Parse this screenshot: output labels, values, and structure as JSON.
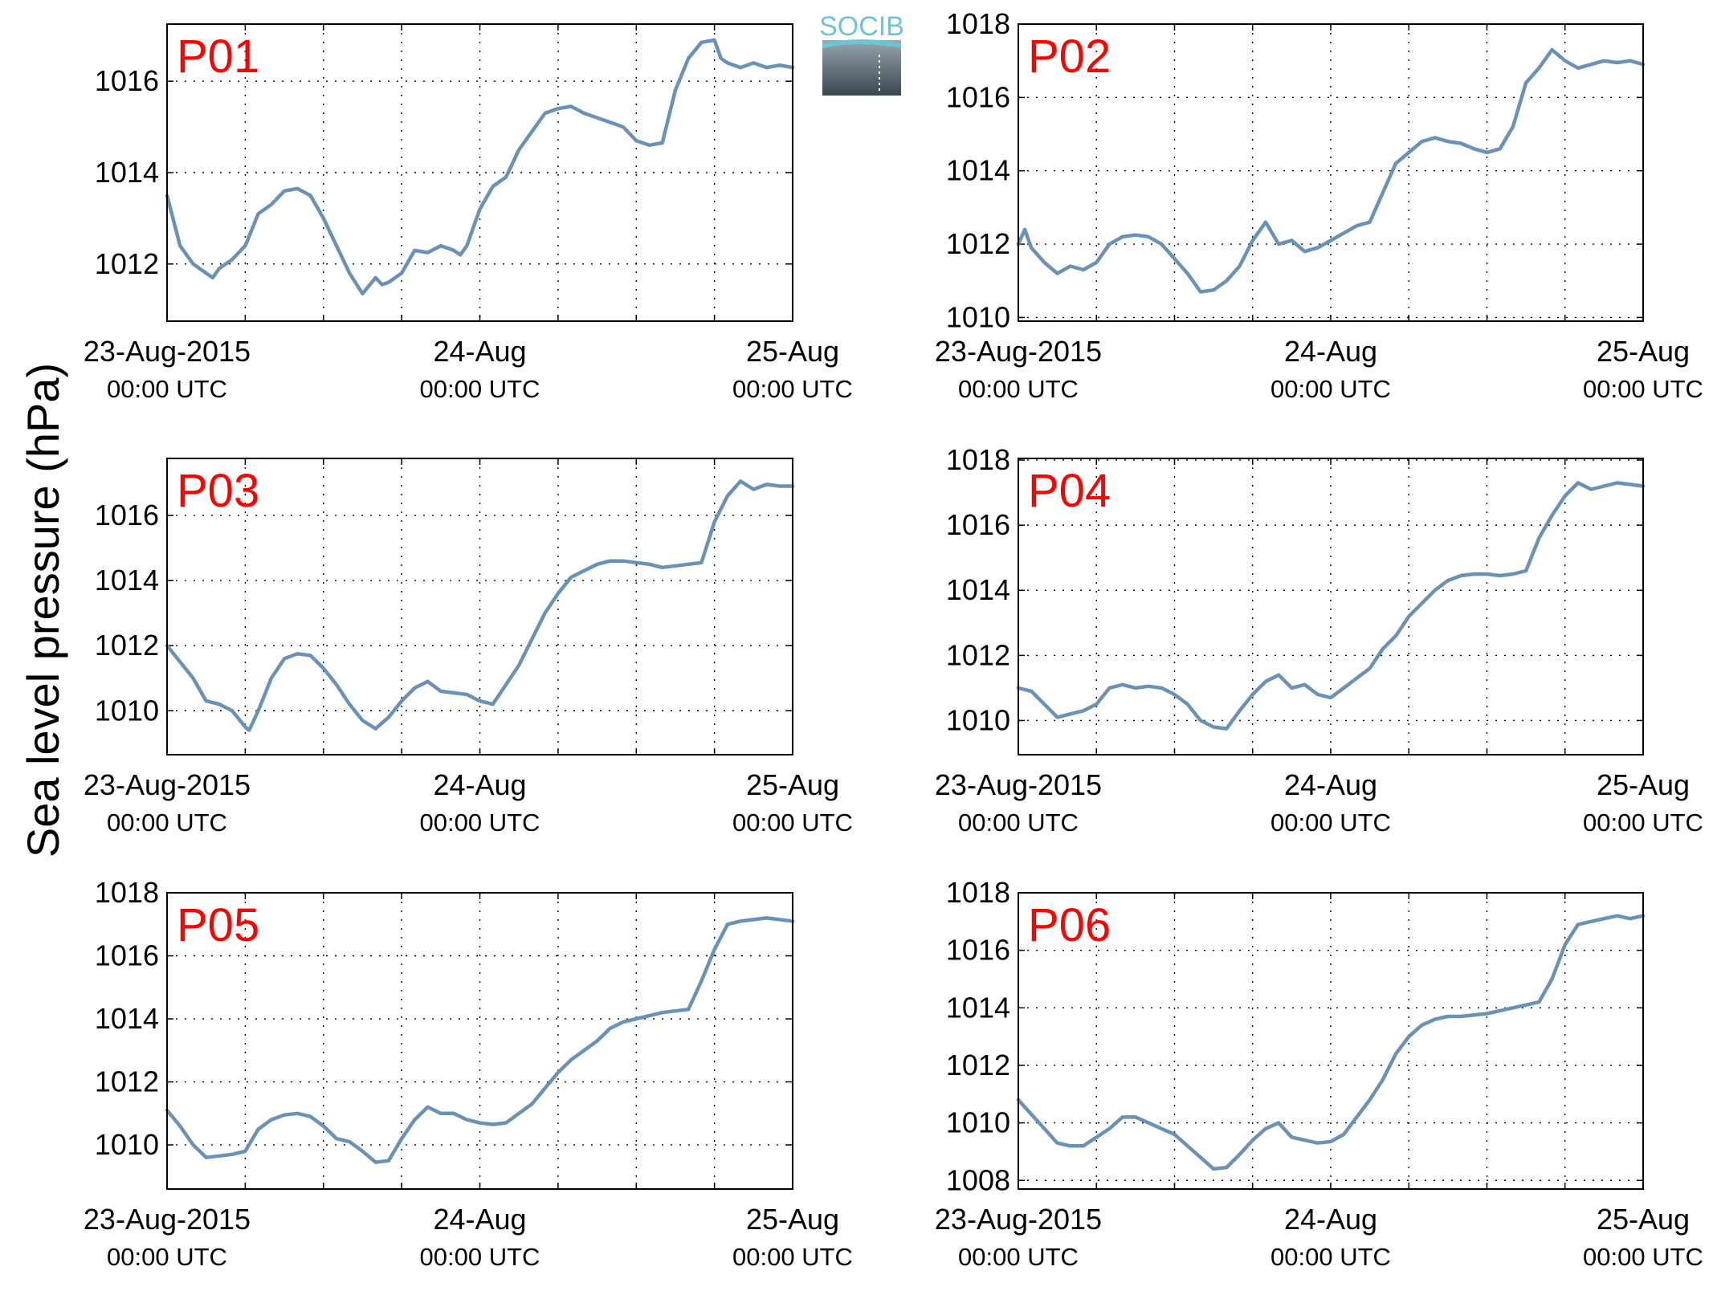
{
  "ylabel": "Sea level pressure (hPa)",
  "logo": {
    "text": "SOCIB"
  },
  "colors": {
    "line": "#6a92b6",
    "panel_label": "#ff0000",
    "logo_accent": "#6ec3d4"
  },
  "chart_data": [
    {
      "type": "line",
      "panel": "P01",
      "ylim": [
        1010.75,
        1017.25
      ],
      "yticks": [
        1012,
        1014,
        1016
      ],
      "xlim": [
        0,
        48
      ],
      "xticks": [
        {
          "h": 0,
          "label": "23-Aug-2015",
          "sub": "00:00 UTC"
        },
        {
          "h": 24,
          "label": "24-Aug",
          "sub": "00:00 UTC"
        },
        {
          "h": 48,
          "label": "25-Aug",
          "sub": "00:00 UTC"
        }
      ],
      "grid": true,
      "x": [
        0,
        1,
        2,
        3,
        3.5,
        4,
        5,
        6,
        7,
        8,
        9,
        10,
        11,
        12,
        13,
        14,
        15,
        16,
        16.5,
        17,
        18,
        19,
        20,
        21,
        22,
        22.5,
        23,
        24,
        25,
        25.5,
        26,
        27,
        28,
        29,
        30,
        31,
        32,
        33,
        34,
        35,
        36,
        37,
        38,
        39,
        40,
        41,
        42,
        42.5,
        43,
        44,
        44.5,
        45,
        46,
        47,
        48
      ],
      "values": [
        1013.5,
        1012.4,
        1012.0,
        1011.8,
        1011.7,
        1011.9,
        1012.1,
        1012.4,
        1013.1,
        1013.3,
        1013.6,
        1013.65,
        1013.5,
        1013.0,
        1012.4,
        1011.8,
        1011.35,
        1011.7,
        1011.55,
        1011.6,
        1011.8,
        1012.3,
        1012.25,
        1012.4,
        1012.3,
        1012.2,
        1012.4,
        1013.2,
        1013.7,
        1013.8,
        1013.9,
        1014.5,
        1014.9,
        1015.3,
        1015.4,
        1015.45,
        1015.3,
        1015.2,
        1015.1,
        1015.0,
        1014.7,
        1014.6,
        1014.65,
        1015.8,
        1016.5,
        1016.85,
        1016.9,
        1016.5,
        1016.4,
        1016.3,
        1016.35,
        1016.4,
        1016.3,
        1016.35,
        1016.3
      ]
    },
    {
      "type": "line",
      "panel": "P02",
      "ylim": [
        1009.9,
        1018.0
      ],
      "yticks": [
        1010,
        1012,
        1014,
        1016,
        1018
      ],
      "xlim": [
        0,
        48
      ],
      "xticks": [
        {
          "h": 0,
          "label": "23-Aug-2015",
          "sub": "00:00 UTC"
        },
        {
          "h": 24,
          "label": "24-Aug",
          "sub": "00:00 UTC"
        },
        {
          "h": 48,
          "label": "25-Aug",
          "sub": "00:00 UTC"
        }
      ],
      "grid": true,
      "x": [
        0,
        0.5,
        1,
        2,
        3,
        4,
        5,
        6,
        7,
        8,
        9,
        10,
        11,
        12,
        13,
        14,
        15,
        16,
        17,
        18,
        19,
        20,
        21,
        22,
        23,
        24,
        25,
        26,
        27,
        28,
        29,
        30,
        31,
        32,
        33,
        34,
        35,
        36,
        37,
        38,
        39,
        40,
        41,
        42,
        43,
        44,
        45,
        46,
        47,
        48
      ],
      "values": [
        1012.0,
        1012.4,
        1011.9,
        1011.5,
        1011.2,
        1011.4,
        1011.3,
        1011.5,
        1012.0,
        1012.2,
        1012.25,
        1012.2,
        1012.0,
        1011.6,
        1011.2,
        1010.7,
        1010.75,
        1011.0,
        1011.4,
        1012.1,
        1012.6,
        1012.0,
        1012.1,
        1011.8,
        1011.9,
        1012.1,
        1012.3,
        1012.5,
        1012.6,
        1013.4,
        1014.2,
        1014.5,
        1014.8,
        1014.9,
        1014.8,
        1014.75,
        1014.6,
        1014.5,
        1014.6,
        1015.2,
        1016.4,
        1016.8,
        1017.3,
        1017.0,
        1016.8,
        1016.9,
        1017.0,
        1016.95,
        1017.0,
        1016.9
      ]
    },
    {
      "type": "line",
      "panel": "P03",
      "ylim": [
        1008.65,
        1017.75
      ],
      "yticks": [
        1010,
        1012,
        1014,
        1016
      ],
      "xlim": [
        0,
        48
      ],
      "xticks": [
        {
          "h": 0,
          "label": "23-Aug-2015",
          "sub": "00:00 UTC"
        },
        {
          "h": 24,
          "label": "24-Aug",
          "sub": "00:00 UTC"
        },
        {
          "h": 48,
          "label": "25-Aug",
          "sub": "00:00 UTC"
        }
      ],
      "grid": true,
      "x": [
        0,
        1,
        2,
        3,
        4,
        5,
        6,
        6.3,
        7,
        8,
        9,
        10,
        11,
        12,
        13,
        14,
        15,
        16,
        17,
        18,
        19,
        20,
        21,
        22,
        23,
        24,
        25,
        26,
        27,
        28,
        29,
        30,
        31,
        32,
        33,
        34,
        35,
        36,
        37,
        38,
        39,
        40,
        41,
        42,
        43,
        44,
        45,
        46,
        47,
        48
      ],
      "values": [
        1012.0,
        1011.5,
        1011.0,
        1010.3,
        1010.2,
        1010.0,
        1009.5,
        1009.4,
        1010.0,
        1011.0,
        1011.6,
        1011.75,
        1011.7,
        1011.3,
        1010.8,
        1010.2,
        1009.7,
        1009.45,
        1009.8,
        1010.3,
        1010.7,
        1010.9,
        1010.6,
        1010.55,
        1010.5,
        1010.3,
        1010.2,
        1010.8,
        1011.4,
        1012.2,
        1013.0,
        1013.6,
        1014.1,
        1014.3,
        1014.5,
        1014.6,
        1014.6,
        1014.55,
        1014.5,
        1014.4,
        1014.45,
        1014.5,
        1014.55,
        1015.8,
        1016.6,
        1017.05,
        1016.8,
        1016.95,
        1016.9,
        1016.9
      ]
    },
    {
      "type": "line",
      "panel": "P04",
      "ylim": [
        1008.95,
        1018.05
      ],
      "yticks": [
        1010,
        1012,
        1014,
        1016,
        1018
      ],
      "xlim": [
        0,
        48
      ],
      "xticks": [
        {
          "h": 0,
          "label": "23-Aug-2015",
          "sub": "00:00 UTC"
        },
        {
          "h": 24,
          "label": "24-Aug",
          "sub": "00:00 UTC"
        },
        {
          "h": 48,
          "label": "25-Aug",
          "sub": "00:00 UTC"
        }
      ],
      "grid": true,
      "x": [
        0,
        1,
        2,
        3,
        4,
        5,
        6,
        7,
        8,
        9,
        10,
        11,
        12,
        13,
        14,
        15,
        16,
        17,
        18,
        19,
        20,
        21,
        22,
        23,
        24,
        25,
        26,
        27,
        28,
        29,
        30,
        31,
        32,
        33,
        34,
        35,
        36,
        37,
        38,
        39,
        40,
        41,
        42,
        43,
        44,
        45,
        46,
        47,
        48
      ],
      "values": [
        1011.0,
        1010.9,
        1010.5,
        1010.1,
        1010.2,
        1010.3,
        1010.5,
        1011.0,
        1011.1,
        1011.0,
        1011.05,
        1011.0,
        1010.8,
        1010.5,
        1010.0,
        1009.8,
        1009.75,
        1010.3,
        1010.8,
        1011.2,
        1011.4,
        1011.0,
        1011.1,
        1010.8,
        1010.7,
        1011.0,
        1011.3,
        1011.6,
        1012.2,
        1012.6,
        1013.2,
        1013.6,
        1014.0,
        1014.3,
        1014.45,
        1014.5,
        1014.5,
        1014.45,
        1014.5,
        1014.6,
        1015.6,
        1016.3,
        1016.9,
        1017.3,
        1017.1,
        1017.2,
        1017.3,
        1017.25,
        1017.2
      ]
    },
    {
      "type": "line",
      "panel": "P05",
      "ylim": [
        1008.6,
        1018.0
      ],
      "yticks": [
        1010,
        1012,
        1014,
        1016,
        1018
      ],
      "xlim": [
        0,
        48
      ],
      "xticks": [
        {
          "h": 0,
          "label": "23-Aug-2015",
          "sub": "00:00 UTC"
        },
        {
          "h": 24,
          "label": "24-Aug",
          "sub": "00:00 UTC"
        },
        {
          "h": 48,
          "label": "25-Aug",
          "sub": "00:00 UTC"
        }
      ],
      "grid": true,
      "x": [
        0,
        1,
        2,
        3,
        4,
        5,
        6,
        7,
        8,
        9,
        10,
        11,
        12,
        13,
        14,
        15,
        16,
        17,
        18,
        19,
        20,
        21,
        22,
        23,
        24,
        25,
        26,
        27,
        28,
        29,
        30,
        31,
        32,
        33,
        34,
        35,
        36,
        37,
        38,
        39,
        40,
        41,
        42,
        43,
        44,
        45,
        46,
        47,
        48
      ],
      "values": [
        1011.1,
        1010.6,
        1010.0,
        1009.6,
        1009.65,
        1009.7,
        1009.8,
        1010.5,
        1010.8,
        1010.95,
        1011.0,
        1010.9,
        1010.6,
        1010.2,
        1010.1,
        1009.8,
        1009.45,
        1009.5,
        1010.2,
        1010.8,
        1011.2,
        1011.0,
        1011.0,
        1010.8,
        1010.7,
        1010.65,
        1010.7,
        1011.0,
        1011.3,
        1011.8,
        1012.3,
        1012.7,
        1013.0,
        1013.3,
        1013.7,
        1013.9,
        1014.0,
        1014.1,
        1014.2,
        1014.25,
        1014.3,
        1015.2,
        1016.2,
        1017.0,
        1017.1,
        1017.15,
        1017.2,
        1017.15,
        1017.1
      ]
    },
    {
      "type": "line",
      "panel": "P06",
      "ylim": [
        1007.7,
        1018.0
      ],
      "yticks": [
        1008,
        1010,
        1012,
        1014,
        1016,
        1018
      ],
      "xlim": [
        0,
        48
      ],
      "xticks": [
        {
          "h": 0,
          "label": "23-Aug-2015",
          "sub": "00:00 UTC"
        },
        {
          "h": 24,
          "label": "24-Aug",
          "sub": "00:00 UTC"
        },
        {
          "h": 48,
          "label": "25-Aug",
          "sub": "00:00 UTC"
        }
      ],
      "grid": true,
      "x": [
        0,
        1,
        2,
        3,
        4,
        5,
        6,
        7,
        8,
        9,
        10,
        11,
        12,
        13,
        14,
        15,
        16,
        17,
        18,
        19,
        20,
        21,
        22,
        23,
        24,
        25,
        26,
        27,
        28,
        29,
        30,
        31,
        32,
        33,
        34,
        35,
        36,
        37,
        38,
        39,
        40,
        41,
        42,
        43,
        44,
        45,
        46,
        47,
        48
      ],
      "values": [
        1010.8,
        1010.3,
        1009.8,
        1009.3,
        1009.2,
        1009.2,
        1009.5,
        1009.8,
        1010.2,
        1010.2,
        1010.0,
        1009.8,
        1009.6,
        1009.2,
        1008.8,
        1008.4,
        1008.45,
        1008.9,
        1009.4,
        1009.8,
        1010.0,
        1009.5,
        1009.4,
        1009.3,
        1009.35,
        1009.6,
        1010.2,
        1010.8,
        1011.5,
        1012.4,
        1013.0,
        1013.4,
        1013.6,
        1013.7,
        1013.7,
        1013.75,
        1013.8,
        1013.9,
        1014.0,
        1014.1,
        1014.2,
        1015.0,
        1016.2,
        1016.9,
        1017.0,
        1017.1,
        1017.2,
        1017.1,
        1017.2
      ]
    }
  ]
}
